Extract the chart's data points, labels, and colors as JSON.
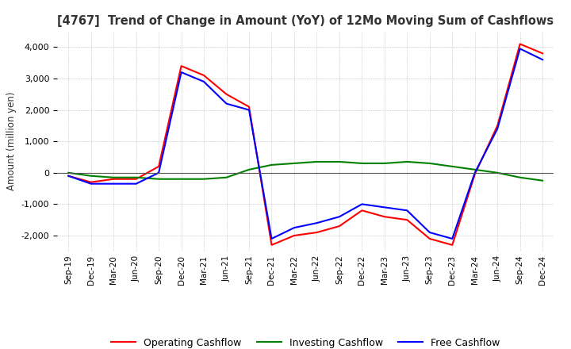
{
  "title": "[4767]  Trend of Change in Amount (YoY) of 12Mo Moving Sum of Cashflows",
  "ylabel": "Amount (million yen)",
  "ylim": [
    -2500,
    4500
  ],
  "yticks": [
    -2000,
    -1000,
    0,
    1000,
    2000,
    3000,
    4000
  ],
  "x_labels": [
    "Sep-19",
    "Dec-19",
    "Mar-20",
    "Jun-20",
    "Sep-20",
    "Dec-20",
    "Mar-21",
    "Jun-21",
    "Sep-21",
    "Dec-21",
    "Mar-22",
    "Jun-22",
    "Sep-22",
    "Dec-22",
    "Mar-23",
    "Jun-23",
    "Sep-23",
    "Dec-23",
    "Mar-24",
    "Jun-24",
    "Sep-24",
    "Dec-24"
  ],
  "operating": [
    -100,
    -300,
    -200,
    -200,
    200,
    3400,
    3100,
    2500,
    2100,
    -2300,
    -2000,
    -1900,
    -1700,
    -1200,
    -1400,
    -1500,
    -2100,
    -2300,
    -50,
    1500,
    4100,
    3800
  ],
  "investing": [
    0,
    -100,
    -150,
    -150,
    -200,
    -200,
    -200,
    -150,
    100,
    250,
    300,
    350,
    350,
    300,
    300,
    350,
    300,
    200,
    100,
    0,
    -150,
    -250
  ],
  "free": [
    -100,
    -350,
    -350,
    -350,
    0,
    3200,
    2900,
    2200,
    2000,
    -2100,
    -1750,
    -1600,
    -1400,
    -1000,
    -1100,
    -1200,
    -1900,
    -2100,
    0,
    1400,
    3950,
    3600
  ],
  "line_colors": {
    "operating": "#ff0000",
    "investing": "#008000",
    "free": "#0000ff"
  },
  "legend_labels": [
    "Operating Cashflow",
    "Investing Cashflow",
    "Free Cashflow"
  ],
  "background_color": "#ffffff",
  "grid_color": "#aaaaaa"
}
